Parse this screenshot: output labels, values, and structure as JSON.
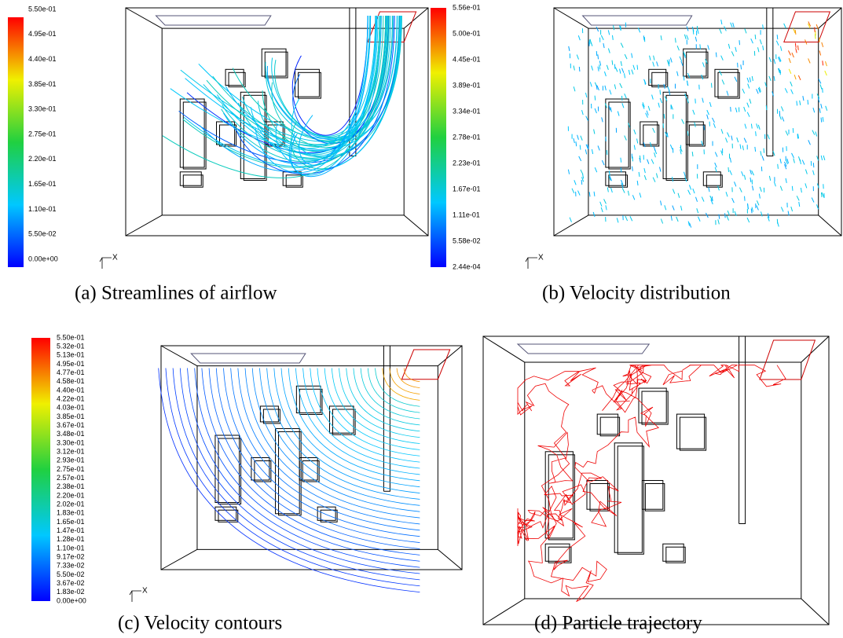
{
  "panels": [
    {
      "colorbar": [
        "5.50e-01",
        "4.95e-01",
        "4.40e-01",
        "3.85e-01",
        "3.30e-01",
        "2.75e-01",
        "2.20e-01",
        "1.65e-01",
        "1.10e-01",
        "5.50e-02",
        "0.00e+00"
      ],
      "axis_label": "X",
      "caption": "(a) Streamlines of airflow"
    },
    {
      "colorbar": [
        "5.56e-01",
        "5.00e-01",
        "4.45e-01",
        "3.89e-01",
        "3.34e-01",
        "2.78e-01",
        "2.23e-01",
        "1.67e-01",
        "1.11e-01",
        "5.58e-02",
        "2.44e-04"
      ],
      "axis_label": "X",
      "caption": "(b) Velocity distribution"
    },
    {
      "colorbar": [
        "5.50e-01",
        "5.32e-01",
        "5.13e-01",
        "4.95e-01",
        "4.77e-01",
        "4.58e-01",
        "4.40e-01",
        "4.22e-01",
        "4.03e-01",
        "3.85e-01",
        "3.67e-01",
        "3.48e-01",
        "3.30e-01",
        "3.12e-01",
        "2.93e-01",
        "2.75e-01",
        "2.57e-01",
        "2.38e-01",
        "2.20e-01",
        "2.02e-01",
        "1.83e-01",
        "1.65e-01",
        "1.47e-01",
        "1.28e-01",
        "1.10e-01",
        "9.17e-02",
        "7.33e-02",
        "5.50e-02",
        "3.67e-02",
        "1.83e-02",
        "0.00e+00"
      ],
      "axis_label": "X",
      "caption": "(c) Velocity contours"
    },
    {
      "caption": "(d) Particle trajectory"
    }
  ]
}
